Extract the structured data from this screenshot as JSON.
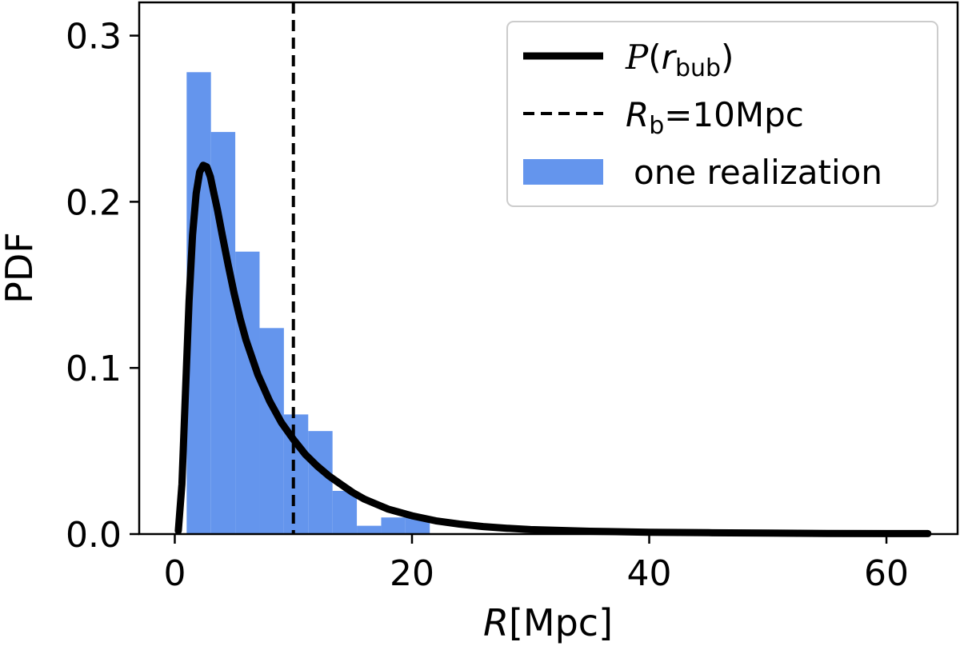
{
  "chart_data": {
    "type": "bar",
    "xlabel_italic": "R",
    "xlabel_rest": "[Mpc]",
    "ylabel": "PDF",
    "xlim": [
      -3,
      66
    ],
    "ylim": [
      0,
      0.32
    ],
    "xticks": [
      0,
      20,
      40,
      60
    ],
    "yticks": [
      0.0,
      0.1,
      0.2,
      0.3
    ],
    "xtick_labels": [
      "0",
      "20",
      "40",
      "60"
    ],
    "ytick_labels": [
      "0.0",
      "0.1",
      "0.2",
      "0.3"
    ],
    "grid": false,
    "legend_position": "upper right",
    "histogram": {
      "name": "one realization",
      "color": "#6495ED",
      "bin_edges": [
        1.0,
        3.05,
        5.1,
        7.15,
        9.2,
        11.25,
        13.3,
        15.35,
        17.4,
        19.45,
        21.5
      ],
      "density": [
        0.278,
        0.242,
        0.17,
        0.124,
        0.072,
        0.062,
        0.026,
        0.005,
        0.01,
        0.01
      ]
    },
    "curve": {
      "name_script": "P",
      "name_var": "r",
      "name_sub": "bub",
      "color": "#000000",
      "x": [
        0.3,
        0.6,
        0.9,
        1.2,
        1.5,
        1.8,
        2.1,
        2.4,
        2.7,
        3.0,
        3.3,
        3.6,
        4.0,
        4.5,
        5.0,
        5.5,
        6.0,
        7.0,
        8.0,
        9.0,
        10.0,
        11.0,
        12.0,
        13.0,
        14.0,
        15.0,
        16.0,
        17.0,
        18.0,
        20.0,
        22.0,
        24.0,
        26.0,
        28.0,
        30.0,
        35.0,
        40.0,
        45.0,
        50.0,
        55.0,
        60.0,
        63.5
      ],
      "y": [
        0.002,
        0.03,
        0.085,
        0.14,
        0.18,
        0.205,
        0.218,
        0.222,
        0.221,
        0.215,
        0.205,
        0.195,
        0.18,
        0.162,
        0.145,
        0.13,
        0.117,
        0.096,
        0.08,
        0.067,
        0.057,
        0.048,
        0.041,
        0.035,
        0.03,
        0.025,
        0.021,
        0.018,
        0.015,
        0.011,
        0.008,
        0.006,
        0.0045,
        0.0035,
        0.0027,
        0.0017,
        0.0011,
        0.0008,
        0.0006,
        0.0004,
        0.0003,
        0.0003
      ]
    },
    "vline": {
      "x": 10,
      "color": "#000000",
      "label_var": "R",
      "label_sub": "b",
      "label_rest": "=10Mpc"
    }
  }
}
